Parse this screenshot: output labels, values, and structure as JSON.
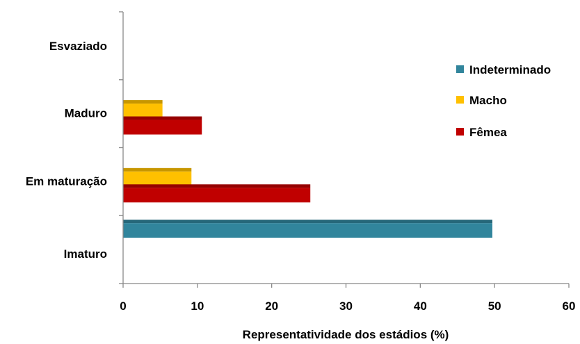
{
  "chart_data": {
    "type": "bar",
    "orientation": "horizontal",
    "categories": [
      "Imaturo",
      "Em maturação",
      "Maduro",
      "Esvaziado"
    ],
    "series": [
      {
        "name": "Indeterminado",
        "values": [
          49.7,
          0,
          0,
          0
        ],
        "color": "#31859C"
      },
      {
        "name": "Macho",
        "values": [
          0,
          9.2,
          5.3,
          0
        ],
        "color": "#FFC000"
      },
      {
        "name": "Fêmea",
        "values": [
          0,
          25.2,
          10.6,
          0
        ],
        "color": "#C00000"
      }
    ],
    "xlabel": "Representatividade dos estádios (%)",
    "ylabel": "",
    "xlim": [
      0,
      60
    ],
    "xticks": [
      "0",
      "10",
      "20",
      "30",
      "40",
      "50",
      "60"
    ],
    "grid": false,
    "legend_position": "right",
    "style": "3d-bars"
  }
}
